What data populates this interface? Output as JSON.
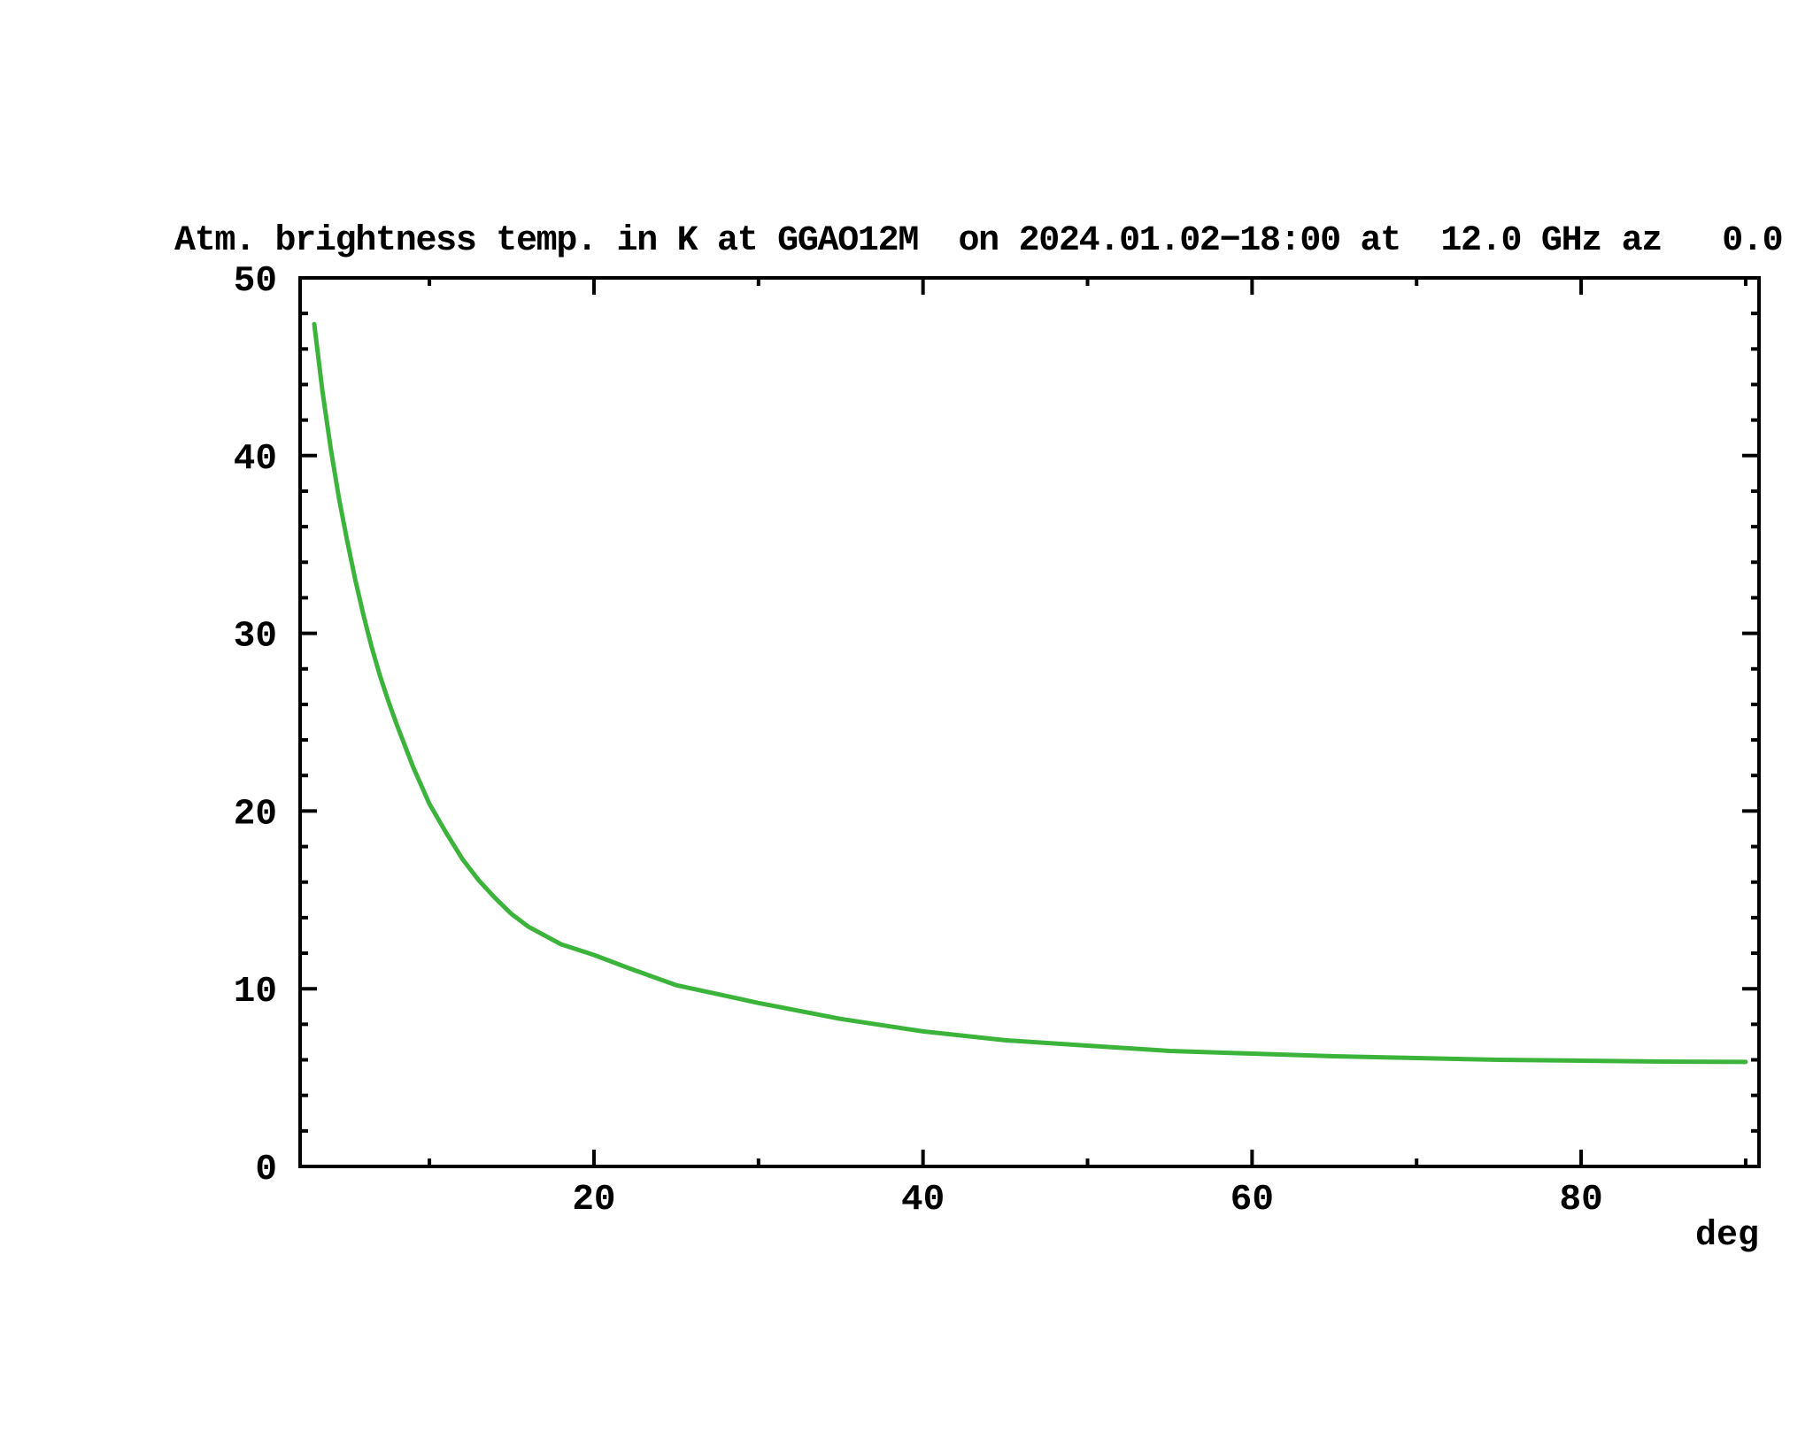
{
  "title": "Atm. brightness temp. in K at GGAO12M  on 2024.01.02−18:00 at  12.0 GHz az   0.0",
  "chart_data": {
    "type": "line",
    "title": "Atm. brightness temp. in K at GGAO12M  on 2024.01.02−18:00 at  12.0 GHz az   0.0",
    "xlabel": "deg",
    "ylabel": "",
    "station": "GGAO12M",
    "datetime": "2024.01.02-18:00",
    "frequency_ghz": "12.0",
    "azimuth_deg": "0.0",
    "xlim": [
      2.14,
      90.81
    ],
    "ylim": [
      0,
      50
    ],
    "x_major_ticks": [
      20,
      40,
      60,
      80
    ],
    "x_minor_ticks": [
      10,
      30,
      50,
      70,
      90
    ],
    "y_major_ticks": [
      0,
      10,
      20,
      30,
      40,
      50
    ],
    "y_minor_ticks": [
      2,
      4,
      6,
      8,
      12,
      14,
      16,
      18,
      22,
      24,
      26,
      28,
      32,
      34,
      36,
      38,
      42,
      44,
      46,
      48
    ],
    "grid": false,
    "legend": "none",
    "series": [
      {
        "name": "atm-brightness-temp-K",
        "color": "#3cb43c",
        "x": [
          3,
          3.5,
          4,
          4.5,
          5,
          5.5,
          6,
          6.5,
          7,
          7.5,
          8,
          9,
          10,
          11,
          12,
          13,
          14,
          15,
          16,
          18,
          20,
          22,
          25,
          28,
          30,
          35,
          40,
          45,
          50,
          55,
          60,
          65,
          70,
          75,
          80,
          85,
          90
        ],
        "y": [
          47.4,
          43.6,
          40.4,
          37.6,
          35.2,
          33.0,
          31.0,
          29.2,
          27.6,
          26.2,
          24.9,
          22.5,
          20.4,
          18.8,
          17.3,
          16.1,
          15.1,
          14.2,
          13.5,
          12.5,
          11.9,
          11.2,
          10.2,
          9.6,
          9.2,
          8.3,
          7.6,
          7.1,
          6.8,
          6.5,
          6.35,
          6.2,
          6.1,
          6.0,
          5.95,
          5.9,
          5.88
        ]
      }
    ]
  },
  "colors": {
    "background": "#ffffff",
    "axis": "#000000",
    "curve": "#3cb43c"
  }
}
